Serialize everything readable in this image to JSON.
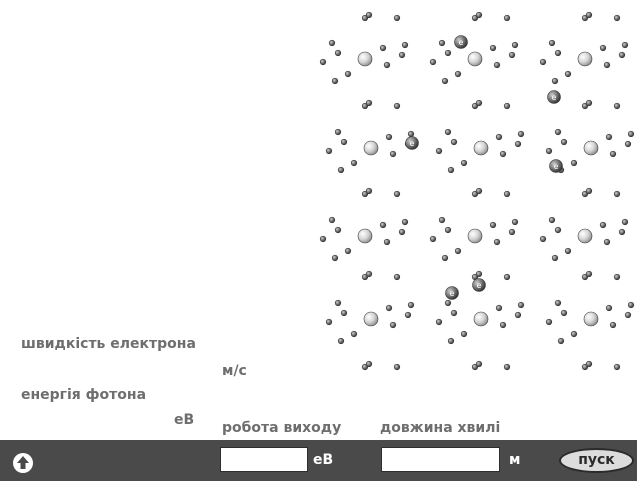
{
  "labels": {
    "electron_speed": "швидкість електрона",
    "speed_unit": "м/с",
    "photon_energy": "енергія фотона",
    "energy_unit": "еВ",
    "work_function": "робота виходу",
    "wavelength": "довжина хвилі"
  },
  "toolbar": {
    "home_icon": "up-arrow-icon",
    "work_function_value": "",
    "work_function_unit": "еВ",
    "wavelength_value": "",
    "wavelength_unit": "м",
    "start_label": "пуск"
  },
  "electron_symbol": "e",
  "colors": {
    "toolbar": "#4a4a4a",
    "label_text": "#6e6e6e",
    "atom_fill": "#d4d4d4",
    "electron_fill": "#5a5a5a"
  }
}
